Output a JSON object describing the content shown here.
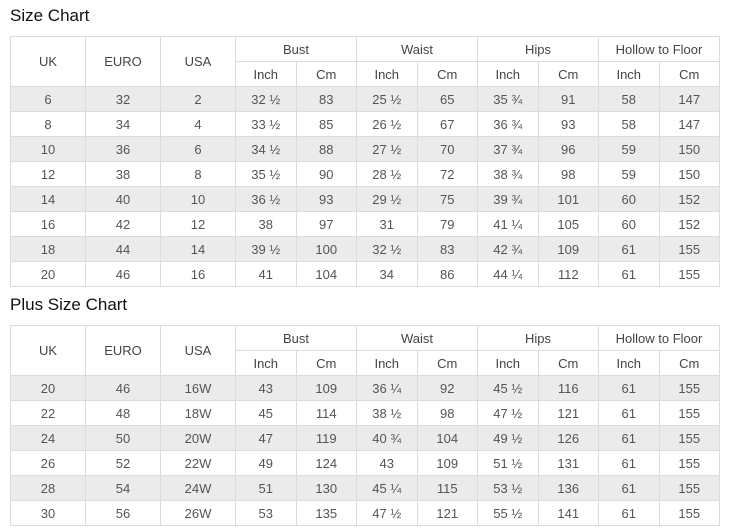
{
  "colors": {
    "stripe_row": "#ebebeb",
    "table_border": "#dcdcdc",
    "cell_text": "#555555",
    "header_text": "#444444",
    "title_text": "#111111"
  },
  "chart_data": [
    {
      "type": "table",
      "title": "Size Chart",
      "main_headers": [
        "UK",
        "EURO",
        "USA"
      ],
      "group_headers": [
        "Bust",
        "Waist",
        "Hips",
        "Hollow to Floor"
      ],
      "sub_headers": [
        "Inch",
        "Cm"
      ],
      "rows": [
        [
          "6",
          "32",
          "2",
          "32 ½",
          "83",
          "25 ½",
          "65",
          "35 ¾",
          "91",
          "58",
          "147"
        ],
        [
          "8",
          "34",
          "4",
          "33 ½",
          "85",
          "26 ½",
          "67",
          "36 ¾",
          "93",
          "58",
          "147"
        ],
        [
          "10",
          "36",
          "6",
          "34 ½",
          "88",
          "27 ½",
          "70",
          "37 ¾",
          "96",
          "59",
          "150"
        ],
        [
          "12",
          "38",
          "8",
          "35 ½",
          "90",
          "28 ½",
          "72",
          "38 ¾",
          "98",
          "59",
          "150"
        ],
        [
          "14",
          "40",
          "10",
          "36 ½",
          "93",
          "29 ½",
          "75",
          "39 ¾",
          "101",
          "60",
          "152"
        ],
        [
          "16",
          "42",
          "12",
          "38",
          "97",
          "31",
          "79",
          "41 ¼",
          "105",
          "60",
          "152"
        ],
        [
          "18",
          "44",
          "14",
          "39 ½",
          "100",
          "32 ½",
          "83",
          "42 ¾",
          "109",
          "61",
          "155"
        ],
        [
          "20",
          "46",
          "16",
          "41",
          "104",
          "34",
          "86",
          "44 ¼",
          "112",
          "61",
          "155"
        ]
      ]
    },
    {
      "type": "table",
      "title": "Plus Size Chart",
      "main_headers": [
        "UK",
        "EURO",
        "USA"
      ],
      "group_headers": [
        "Bust",
        "Waist",
        "Hips",
        "Hollow to Floor"
      ],
      "sub_headers": [
        "Inch",
        "Cm"
      ],
      "rows": [
        [
          "20",
          "46",
          "16W",
          "43",
          "109",
          "36 ¼",
          "92",
          "45 ½",
          "116",
          "61",
          "155"
        ],
        [
          "22",
          "48",
          "18W",
          "45",
          "114",
          "38 ½",
          "98",
          "47 ½",
          "121",
          "61",
          "155"
        ],
        [
          "24",
          "50",
          "20W",
          "47",
          "119",
          "40 ¾",
          "104",
          "49 ½",
          "126",
          "61",
          "155"
        ],
        [
          "26",
          "52",
          "22W",
          "49",
          "124",
          "43",
          "109",
          "51 ½",
          "131",
          "61",
          "155"
        ],
        [
          "28",
          "54",
          "24W",
          "51",
          "130",
          "45 ¼",
          "115",
          "53 ½",
          "136",
          "61",
          "155"
        ],
        [
          "30",
          "56",
          "26W",
          "53",
          "135",
          "47 ½",
          "121",
          "55 ½",
          "141",
          "61",
          "155"
        ]
      ]
    }
  ]
}
